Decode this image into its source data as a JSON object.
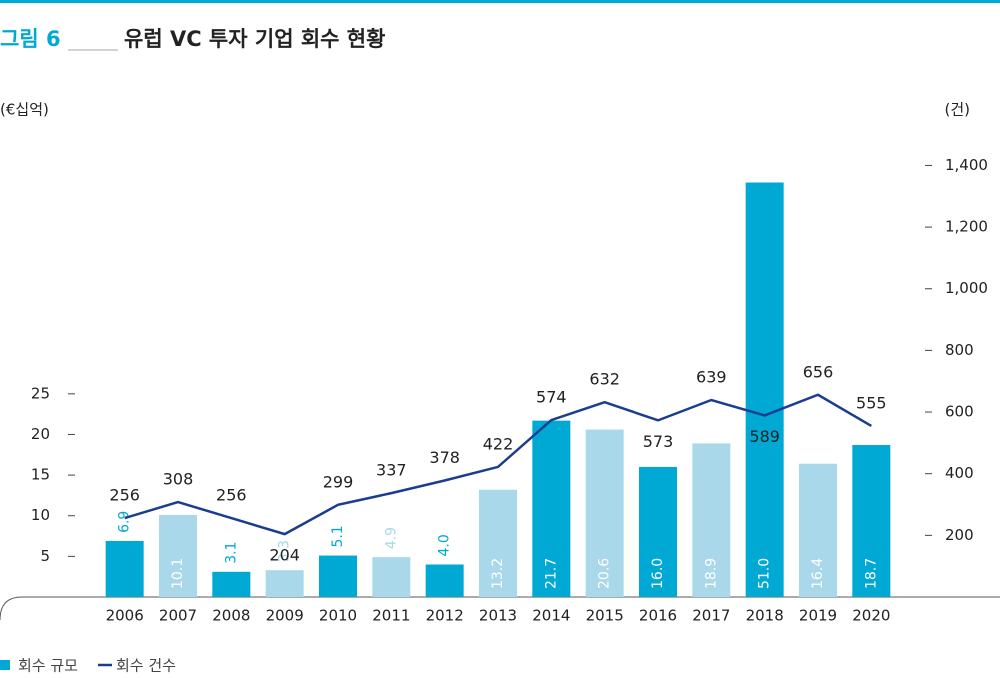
{
  "chart_data": {
    "type": "bar",
    "figure_label": "그림 6",
    "title": "유럽 VC 투자 기업 회수 현황",
    "ylabel": "(€십억)",
    "y2label": "(건)",
    "categories": [
      "2006",
      "2007",
      "2008",
      "2009",
      "2010",
      "2011",
      "2012",
      "2013",
      "2014",
      "2015",
      "2016",
      "2017",
      "2018",
      "2019",
      "2020"
    ],
    "series": [
      {
        "name": "회수 규모",
        "type": "bar",
        "color": "#00a9d4",
        "colors": [
          "#00a9d4",
          "#a8d8ea",
          "#00a9d4",
          "#a8d8ea",
          "#00a9d4",
          "#a8d8ea",
          "#00a9d4",
          "#a8d8ea",
          "#00a9d4",
          "#a8d8ea",
          "#00a9d4",
          "#a8d8ea",
          "#00a9d4",
          "#a8d8ea",
          "#00a9d4"
        ],
        "values": [
          6.9,
          10.1,
          3.1,
          3.3,
          5.1,
          4.9,
          4.0,
          13.2,
          21.7,
          20.6,
          16.0,
          18.9,
          51.0,
          16.4,
          18.7
        ],
        "value_labels": [
          "6.9",
          "10.1",
          "3.1",
          "3.3",
          "5.1",
          "4.9",
          "4.0",
          "13.2",
          "21.7",
          "20.6",
          "16.0",
          "18.9",
          "51.0",
          "16.4",
          "18.7"
        ]
      },
      {
        "name": "회수 건수",
        "type": "line",
        "axis": "y2",
        "color": "#1a3d8f",
        "values": [
          256,
          308,
          256,
          204,
          299,
          337,
          378,
          422,
          574,
          632,
          573,
          639,
          589,
          656,
          555
        ]
      }
    ],
    "ylim": [
      0,
      55
    ],
    "yticks": [
      5,
      10,
      15,
      20,
      25
    ],
    "y2lim": [
      0,
      1450
    ],
    "y2ticks": [
      200,
      400,
      600,
      800,
      {
        "value": 1000,
        "label": "1,000"
      },
      {
        "value": 1200,
        "label": "1,200"
      },
      {
        "value": 1400,
        "label": "1,400"
      }
    ]
  }
}
